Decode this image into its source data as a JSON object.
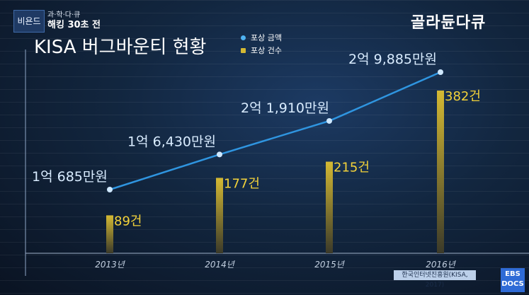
{
  "header": {
    "logo": "비욘드",
    "series_small": "과·학·다·큐",
    "series_big": "해킹 30초 전",
    "brand": "골라듄다큐",
    "title": "KISA 버그바운티 현황"
  },
  "footer": {
    "source": "한국인터넷진흥원(KISA, 2017)",
    "ebs_line1": "EBS",
    "ebs_line2": "DOCS"
  },
  "colors": {
    "line": "#2f95e0",
    "bar": "#d4b933",
    "bar_label": "#f3d23a",
    "line_label": "#d9ecff"
  },
  "chart_data": {
    "type": "bar+line",
    "title": "KISA 버그바운티 현황",
    "categories": [
      "2013년",
      "2014년",
      "2015년",
      "2016년"
    ],
    "series": [
      {
        "name": "포상 금액",
        "type": "line",
        "values": [
          106850000,
          164300000,
          219100000,
          298850000
        ],
        "labels": [
          "1억 685만원",
          "1억 6,430만원",
          "2억 1,910만원",
          "2억 9,885만원"
        ]
      },
      {
        "name": "포상 건수",
        "type": "bar",
        "values": [
          89,
          177,
          215,
          382
        ],
        "labels": [
          "89건",
          "177건",
          "215건",
          "382건"
        ]
      }
    ],
    "legend_position": "top-center"
  }
}
